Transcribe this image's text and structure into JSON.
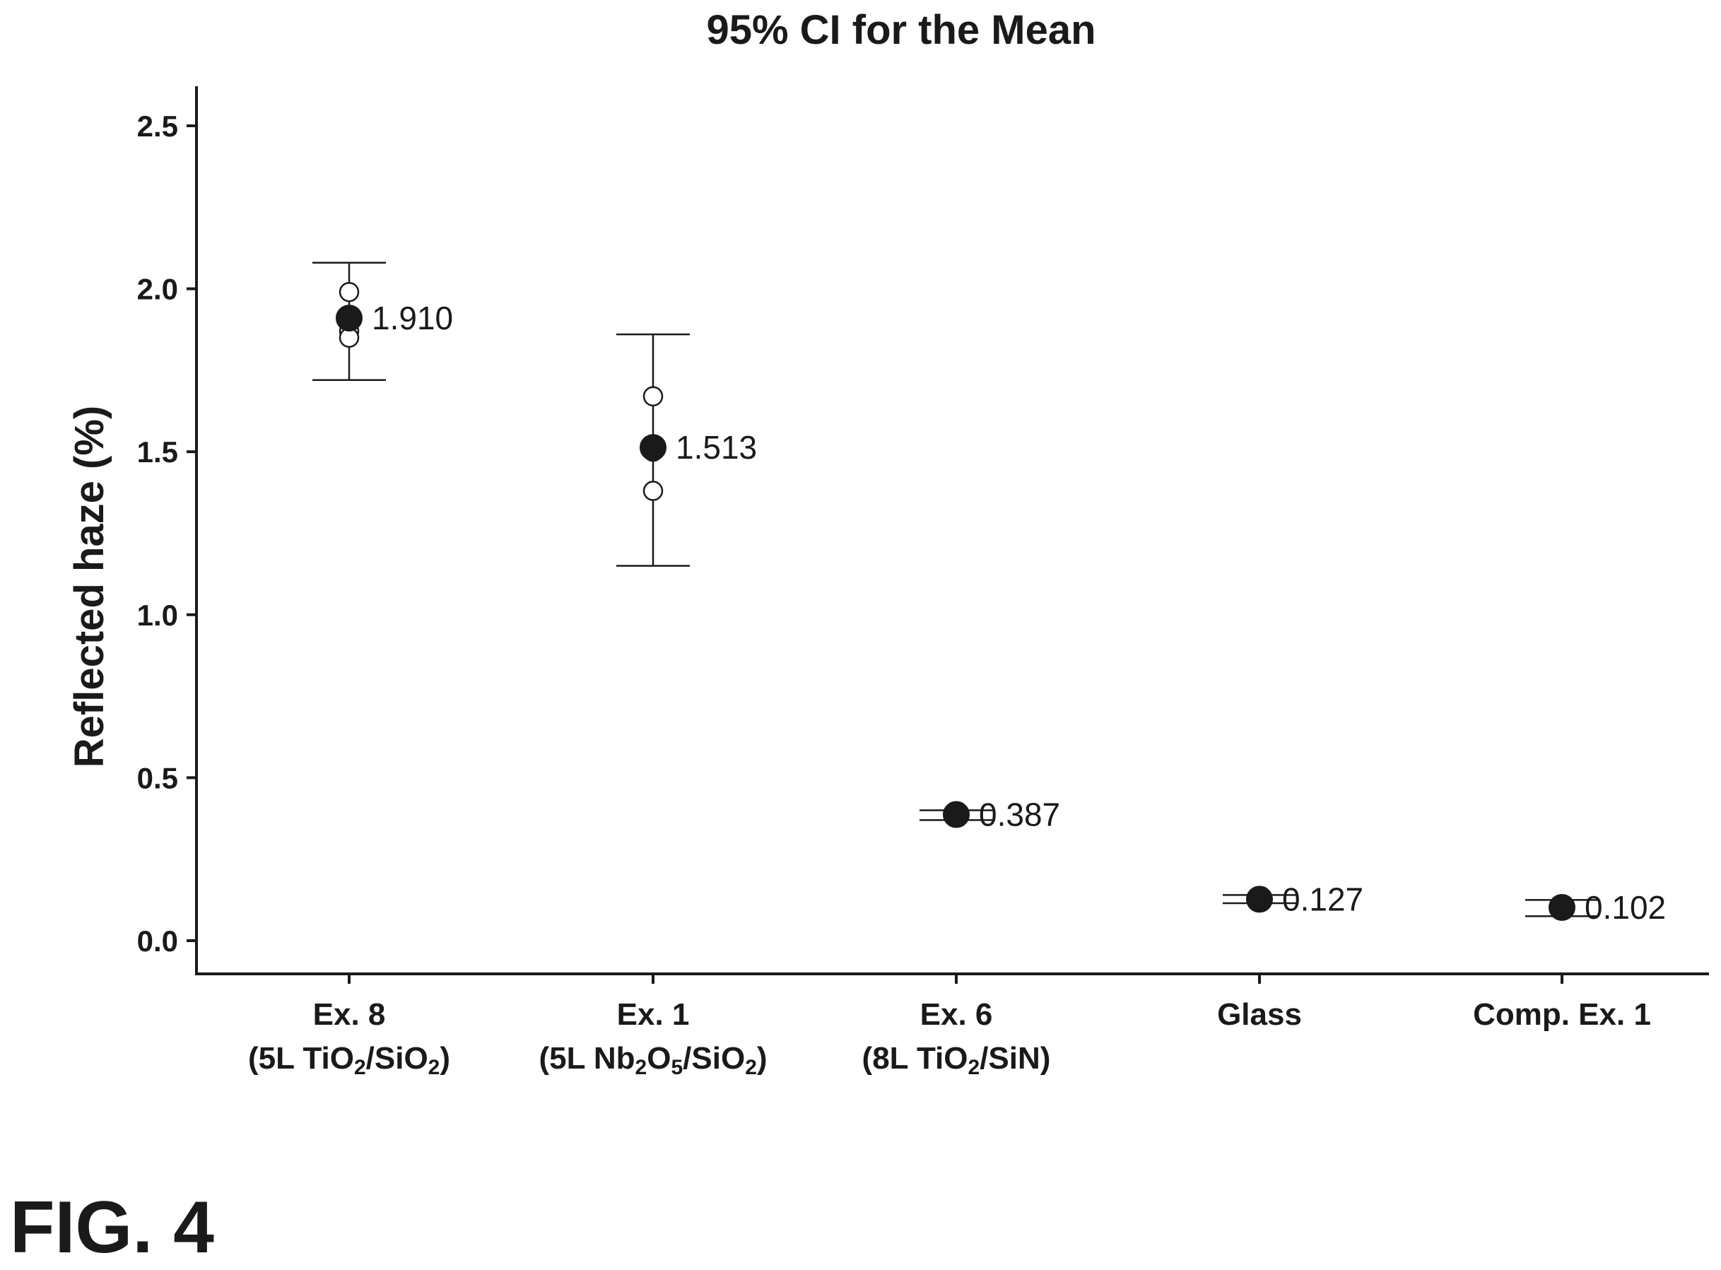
{
  "figure_label": "FIG. 4",
  "chart_data": {
    "type": "scatter",
    "title": "95% CI for the Mean",
    "xlabel": "",
    "ylabel": "Reflected haze (%)",
    "ylim": [
      -0.1,
      2.6
    ],
    "yticks": [
      0.0,
      0.5,
      1.0,
      1.5,
      2.0,
      2.5
    ],
    "ytick_labels": [
      "0.0",
      "0.5",
      "1.0",
      "1.5",
      "2.0",
      "2.5"
    ],
    "grid": false,
    "legend": "none",
    "categories": [
      {
        "line1": "Ex. 8",
        "main": "(5L TiO",
        "parts": [
          [
            "(5L TiO",
            ""
          ],
          [
            "2",
            "sub"
          ],
          [
            "/SiO",
            ""
          ],
          [
            "2",
            "sub"
          ],
          [
            ")",
            ""
          ]
        ]
      },
      {
        "line1": "Ex. 1",
        "main": "(5L Nb2O5/SiO2)",
        "parts": [
          [
            "(5L Nb",
            ""
          ],
          [
            "2",
            "sub"
          ],
          [
            "O",
            ""
          ],
          [
            "5",
            "sub"
          ],
          [
            "/SiO",
            ""
          ],
          [
            "2",
            "sub"
          ],
          [
            ")",
            ""
          ]
        ]
      },
      {
        "line1": "Ex. 6",
        "main": "(8L TiO2/SiN)",
        "parts": [
          [
            "(8L TiO",
            ""
          ],
          [
            "2",
            "sub"
          ],
          [
            "/SiN)",
            ""
          ]
        ]
      },
      {
        "line1": "Glass",
        "main": "",
        "parts": []
      },
      {
        "line1": "Comp. Ex. 1",
        "main": "",
        "parts": []
      }
    ],
    "means": [
      1.91,
      1.513,
      0.387,
      0.127,
      0.102
    ],
    "mean_labels": [
      "1.910",
      "1.513",
      "0.387",
      "0.127",
      "0.102"
    ],
    "ci_low": [
      1.72,
      1.15,
      0.37,
      0.115,
      0.075
    ],
    "ci_high": [
      2.08,
      1.86,
      0.4,
      0.14,
      0.125
    ],
    "individual_points": [
      [
        1.99,
        1.87,
        1.85
      ],
      [
        1.67,
        1.5,
        1.38
      ],
      [],
      [],
      []
    ],
    "colors": {
      "mean_marker": "#1a1a1a",
      "individual_marker": "#ffffff",
      "line": "#1a1a1a"
    }
  }
}
